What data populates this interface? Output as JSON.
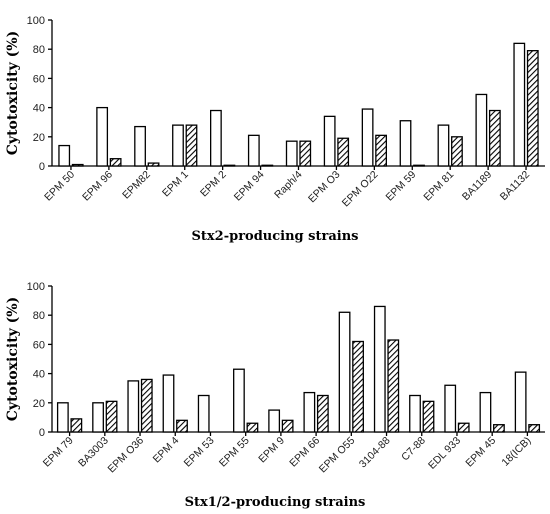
{
  "chart_data": [
    {
      "type": "bar",
      "xlabel": "Stx2-producing strains",
      "ylabel": "Cytotoxicity (%)",
      "ylim": [
        0,
        100
      ],
      "yticks": [
        0,
        20,
        40,
        60,
        80,
        100
      ],
      "grid": false,
      "categories": [
        "EPM 50",
        "EPM 96",
        "EPM82",
        "EPM 1",
        "EPM 2",
        "EPM 94",
        "Raph/4",
        "EPM O3",
        "EPM O22",
        "EPM 59",
        "EPM 81",
        "BA1189",
        "BA1132"
      ],
      "series": [
        {
          "style": "open",
          "values": [
            14,
            40,
            27,
            28,
            38,
            21,
            17,
            34,
            39,
            31,
            28,
            49,
            84
          ]
        },
        {
          "style": "hatched",
          "values": [
            1,
            5,
            2,
            28,
            0.5,
            0.5,
            17,
            19,
            21,
            0.5,
            20,
            38,
            79
          ]
        }
      ]
    },
    {
      "type": "bar",
      "xlabel": "Stx1/2-producing strains",
      "ylabel": "Cytotoxicity (%)",
      "ylim": [
        0,
        100
      ],
      "yticks": [
        0,
        20,
        40,
        60,
        80,
        100
      ],
      "grid": false,
      "categories": [
        "EPM 79",
        "BA3003",
        "EPM O36",
        "EPM 4",
        "EPM 53",
        "EPM 55",
        "EPM 9",
        "EPM 66",
        "EPM O55",
        "3104-88",
        "C7-88",
        "EDL 933",
        "EPM 45",
        "18(ICB)"
      ],
      "series": [
        {
          "style": "open",
          "values": [
            20,
            20,
            35,
            39,
            25,
            43,
            15,
            27,
            82,
            86,
            25,
            32,
            27,
            41
          ]
        },
        {
          "style": "hatched",
          "values": [
            9,
            21,
            36,
            8,
            0,
            6,
            8,
            25,
            62,
            63,
            21,
            6,
            5,
            5
          ]
        }
      ]
    }
  ]
}
